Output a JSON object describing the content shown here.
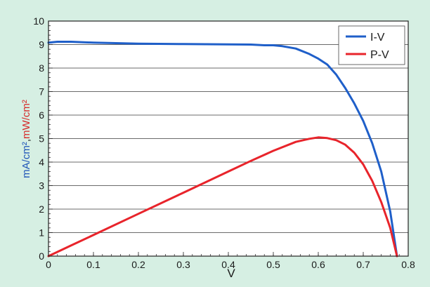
{
  "chart_data": {
    "type": "line",
    "xlabel": "V",
    "ylabel_parts": [
      "mA/cm²",
      ",",
      "mW/cm²"
    ],
    "xlim": [
      0,
      0.8
    ],
    "ylim": [
      0,
      10
    ],
    "x_ticks": [
      "0",
      "0.1",
      "0.2",
      "0.3",
      "0.4",
      "0.5",
      "0.6",
      "0.7",
      "0.8"
    ],
    "y_ticks": [
      "0",
      "1",
      "2",
      "3",
      "4",
      "5",
      "6",
      "7",
      "8",
      "9",
      "10"
    ],
    "grid": "horizontal",
    "legend_position": "top-right",
    "series": [
      {
        "name": "I-V",
        "color": "#1f5fc9",
        "x": [
          0,
          0.02,
          0.05,
          0.1,
          0.2,
          0.3,
          0.4,
          0.45,
          0.48,
          0.5,
          0.52,
          0.55,
          0.58,
          0.6,
          0.62,
          0.64,
          0.66,
          0.68,
          0.7,
          0.72,
          0.74,
          0.76,
          0.775
        ],
        "y": [
          9.08,
          9.12,
          9.12,
          9.08,
          9.04,
          9.02,
          9.01,
          9.0,
          8.97,
          8.97,
          8.93,
          8.83,
          8.6,
          8.4,
          8.15,
          7.72,
          7.15,
          6.5,
          5.75,
          4.8,
          3.6,
          1.9,
          0
        ]
      },
      {
        "name": "P-V",
        "color": "#e8242b",
        "x": [
          0,
          0.05,
          0.1,
          0.2,
          0.3,
          0.4,
          0.45,
          0.5,
          0.55,
          0.58,
          0.6,
          0.62,
          0.64,
          0.66,
          0.68,
          0.7,
          0.71,
          0.72,
          0.74,
          0.76,
          0.775
        ],
        "y": [
          0,
          0.45,
          0.9,
          1.8,
          2.7,
          3.6,
          4.05,
          4.48,
          4.86,
          4.99,
          5.05,
          5.02,
          4.93,
          4.74,
          4.4,
          3.9,
          3.55,
          3.2,
          2.3,
          1.2,
          0
        ]
      }
    ]
  }
}
